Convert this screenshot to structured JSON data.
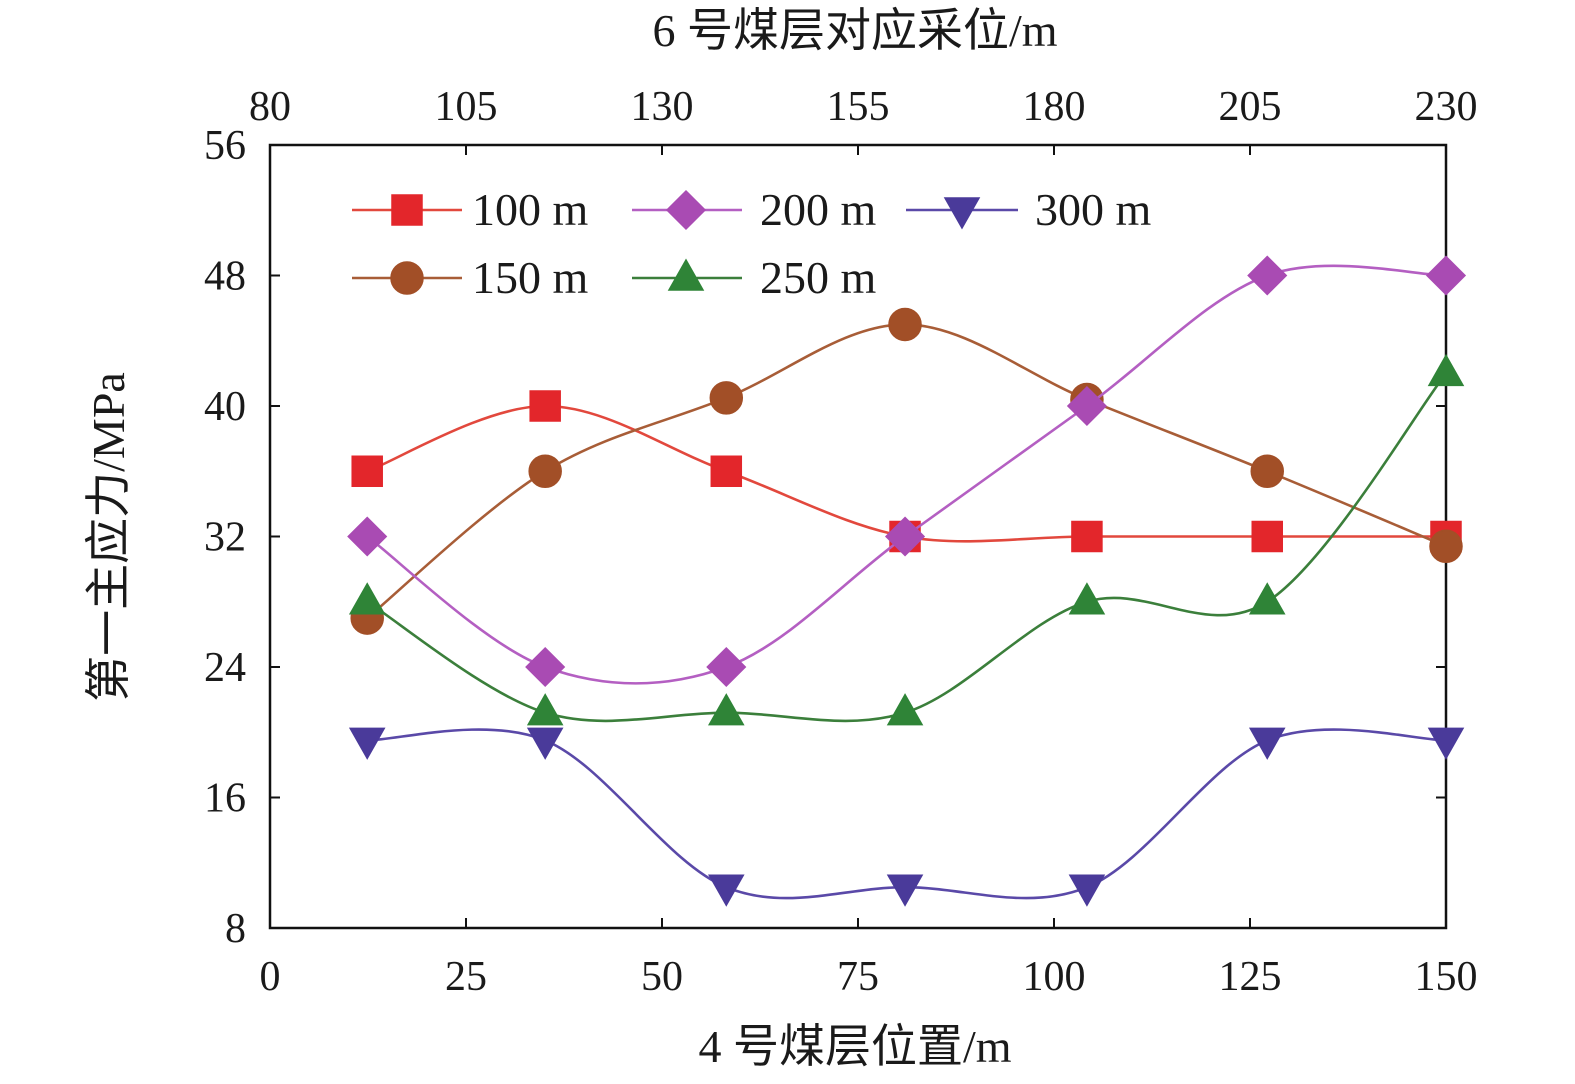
{
  "chart_data": {
    "type": "line",
    "title": "",
    "xlabel": "4 号煤层位置/m",
    "x2label": "6 号煤层对应采位/m",
    "ylabel": "第一主应力/MPa",
    "xlim": [
      0,
      150
    ],
    "x2lim": [
      80,
      230
    ],
    "ylim": [
      8,
      56
    ],
    "xticks": [
      0,
      25,
      50,
      75,
      100,
      125,
      150
    ],
    "x2ticks": [
      80,
      105,
      130,
      155,
      180,
      205,
      230
    ],
    "yticks": [
      8,
      16,
      24,
      32,
      40,
      48,
      56
    ],
    "grid": false,
    "legend": "top-left",
    "x": [
      12.4,
      35.1,
      58.2,
      81.0,
      104.2,
      127.2,
      150
    ],
    "series": [
      {
        "name": "100 m",
        "marker": "square",
        "line_color": "#e2483d",
        "marker_color": "#e3262b",
        "values": [
          36,
          40,
          36,
          32,
          32,
          32,
          32
        ]
      },
      {
        "name": "150 m",
        "marker": "circle",
        "line_color": "#a85d37",
        "marker_color": "#a24f27",
        "values": [
          27,
          36,
          40.5,
          45,
          40.4,
          36,
          31.4
        ]
      },
      {
        "name": "200 m",
        "marker": "diamond",
        "line_color": "#b45fc2",
        "marker_color": "#a94bb3",
        "values": [
          32,
          24,
          24,
          32,
          40,
          48,
          48
        ]
      },
      {
        "name": "250 m",
        "marker": "triangle",
        "line_color": "#3b7f3b",
        "marker_color": "#2f8437",
        "values": [
          28,
          21.2,
          21.2,
          21.2,
          28,
          28,
          42
        ]
      },
      {
        "name": "300 m",
        "marker": "triangle-down",
        "line_color": "#5a49a8",
        "marker_color": "#4a3a9a",
        "values": [
          19.5,
          19.5,
          10.5,
          10.5,
          10.5,
          19.5,
          19.5
        ]
      }
    ]
  }
}
